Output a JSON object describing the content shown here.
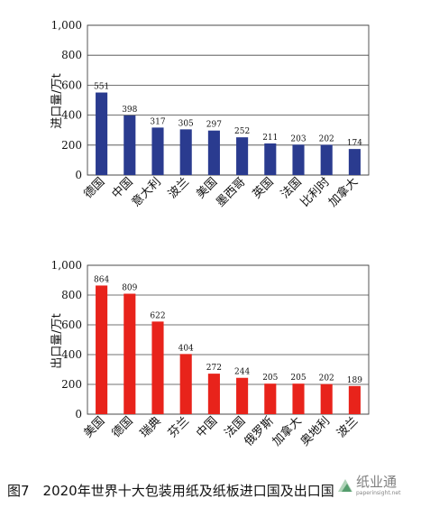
{
  "caption": "图7　2020年世界十大包装用纸及纸板进口国及出口国",
  "watermark": {
    "text": "纸业通",
    "url": "paperinsight.net"
  },
  "colors": {
    "import_bar": "#2a3b8f",
    "export_bar": "#e8231b",
    "grid": "#444444",
    "text": "#111111"
  },
  "chart_data": [
    {
      "type": "bar",
      "title": "",
      "xlabel": "",
      "ylabel": "进口量/万t",
      "ylim": [
        0,
        1000
      ],
      "yticks": [
        "0",
        "200",
        "400",
        "600",
        "800",
        "1,000"
      ],
      "grid": true,
      "categories": [
        "德国",
        "中国",
        "意大利",
        "波兰",
        "美国",
        "墨西哥",
        "英国",
        "法国",
        "比利时",
        "加拿大"
      ],
      "values": [
        551,
        398,
        317,
        305,
        297,
        252,
        211,
        203,
        202,
        174
      ],
      "value_labels": [
        "551",
        "398",
        "317",
        "305",
        "297",
        "252",
        "211",
        "203",
        "202",
        "174"
      ]
    },
    {
      "type": "bar",
      "title": "",
      "xlabel": "",
      "ylabel": "出口量/万t",
      "ylim": [
        0,
        1000
      ],
      "yticks": [
        "0",
        "200",
        "400",
        "600",
        "800",
        "1,000"
      ],
      "grid": true,
      "categories": [
        "美国",
        "德国",
        "瑞典",
        "芬兰",
        "中国",
        "法国",
        "俄罗斯",
        "加拿大",
        "奥地利",
        "波兰"
      ],
      "values": [
        864,
        809,
        622,
        404,
        272,
        244,
        205,
        205,
        202,
        189
      ],
      "value_labels": [
        "864",
        "809",
        "622",
        "404",
        "272",
        "244",
        "205",
        "205",
        "202",
        "189"
      ]
    }
  ]
}
